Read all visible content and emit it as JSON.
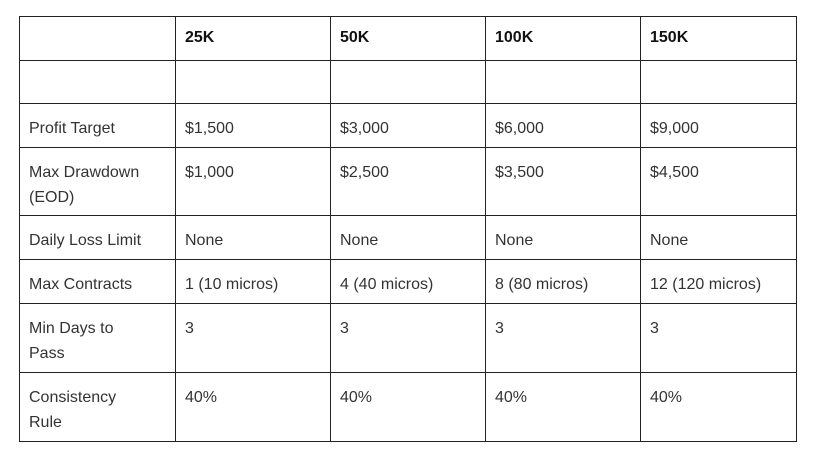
{
  "table": {
    "columns": [
      "25K",
      "50K",
      "100K",
      "150K"
    ],
    "rows": [
      {
        "label": "Profit Target",
        "values": [
          "$1,500",
          "$3,000",
          "$6,000",
          "$9,000"
        ]
      },
      {
        "label": "Max Drawdown (EOD)",
        "values": [
          "$1,000",
          "$2,500",
          "$3,500",
          "$4,500"
        ]
      },
      {
        "label": "Daily Loss Limit",
        "values": [
          "None",
          "None",
          "None",
          "None"
        ]
      },
      {
        "label": "Max Contracts",
        "values": [
          "1 (10 micros)",
          "4 (40 micros)",
          "8 (80 micros)",
          "12 (120 micros)"
        ]
      },
      {
        "label": "Min Days to Pass",
        "values": [
          "3",
          "3",
          "3",
          "3"
        ]
      },
      {
        "label": "Consistency Rule",
        "values": [
          "40%",
          "40%",
          "40%",
          "40%"
        ]
      }
    ]
  }
}
